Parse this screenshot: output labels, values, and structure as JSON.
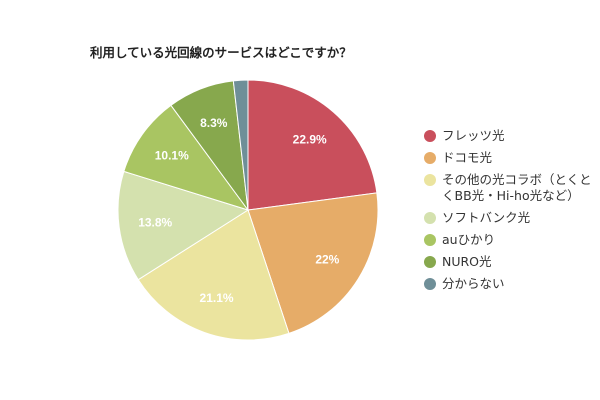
{
  "chart_data": {
    "type": "pie",
    "title": "利用している光回線のサービスはどこですか？",
    "legend_position": "right",
    "slices": [
      {
        "label": "フレッツ光",
        "value": 22.9,
        "data_label": "22.9%",
        "color": "#c94f5c"
      },
      {
        "label": "ドコモ光",
        "value": 22,
        "data_label": "22%",
        "color": "#e6ac68"
      },
      {
        "label": "その他の光コラボ（とくとくBB光・Hi-ho光など）",
        "value": 21.1,
        "data_label": "21.1%",
        "color": "#ebe49f"
      },
      {
        "label": "ソフトバンク光",
        "value": 13.8,
        "data_label": "13.8%",
        "color": "#d4e1ae"
      },
      {
        "label": "auひかり",
        "value": 10.1,
        "data_label": "10.1%",
        "color": "#a9c562"
      },
      {
        "label": "NURO光",
        "value": 8.3,
        "data_label": "8.3%",
        "color": "#87a84d"
      },
      {
        "label": "分からない",
        "value": 1.8,
        "data_label": "",
        "color": "#6f8f98"
      }
    ]
  }
}
